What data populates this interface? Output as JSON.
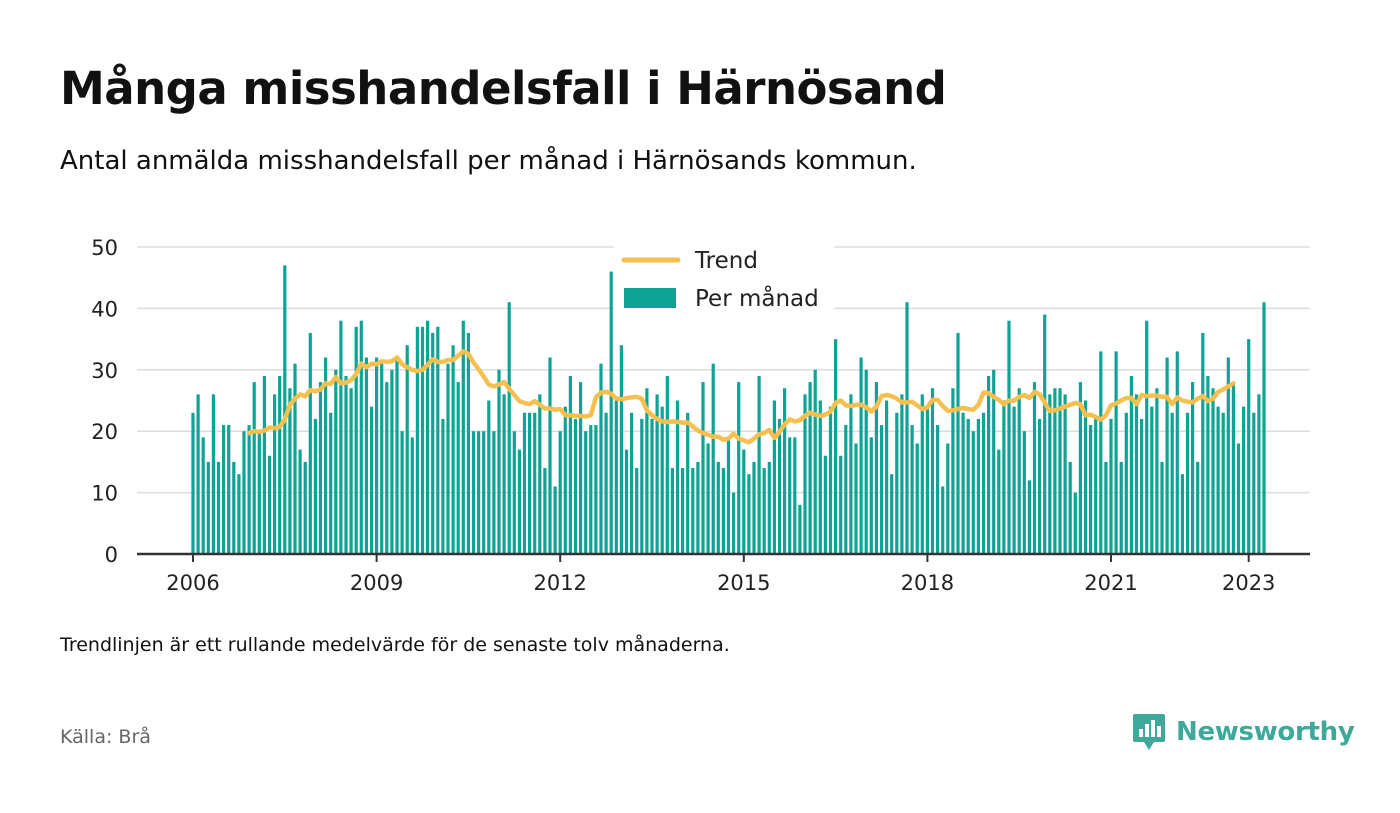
{
  "header": {
    "title": "Många misshandelsfall i Härnösand",
    "subtitle": "Antal anmälda misshandelsfall per månad i Härnösands kommun."
  },
  "footer": {
    "note": "Trendlinjen är ett rullande medelvärde för de senaste tolv månaderna.",
    "source": "Källa: Brå",
    "brand": "Newsworthy"
  },
  "colors": {
    "bars": "#0fa396",
    "trend": "#f5c04f",
    "grid": "#dddddd",
    "axis": "#333333",
    "brand": "#3ea89a"
  },
  "chart_data": {
    "type": "bar",
    "x_start": "2006-01",
    "ylim": [
      0,
      50
    ],
    "yticks": [
      0,
      10,
      20,
      30,
      40,
      50
    ],
    "xticks": [
      "2006",
      "2009",
      "2012",
      "2015",
      "2018",
      "2021",
      "2023"
    ],
    "grid": true,
    "legend_position": "top-center",
    "series": [
      {
        "name": "Per månad",
        "type": "bar",
        "values": [
          23,
          26,
          19,
          15,
          26,
          15,
          21,
          21,
          15,
          13,
          20,
          21,
          28,
          20,
          29,
          16,
          26,
          29,
          47,
          27,
          31,
          17,
          15,
          36,
          22,
          28,
          32,
          23,
          30,
          38,
          29,
          27,
          37,
          38,
          32,
          24,
          32,
          31,
          28,
          30,
          32,
          20,
          34,
          19,
          37,
          37,
          38,
          36,
          37,
          22,
          31,
          34,
          28,
          38,
          36,
          20,
          20,
          20,
          25,
          20,
          30,
          26,
          41,
          20,
          17,
          23,
          23,
          23,
          26,
          14,
          32,
          11,
          20,
          24,
          29,
          22,
          28,
          20,
          21,
          21,
          31,
          23,
          46,
          25,
          34,
          17,
          23,
          14,
          22,
          27,
          22,
          26,
          24,
          29,
          14,
          25,
          14,
          23,
          14,
          15,
          28,
          18,
          31,
          15,
          14,
          19,
          10,
          28,
          17,
          13,
          15,
          29,
          14,
          15,
          25,
          22,
          27,
          19,
          19,
          8,
          26,
          28,
          30,
          25,
          16,
          24,
          35,
          16,
          21,
          26,
          18,
          32,
          30,
          19,
          28,
          21,
          25,
          13,
          23,
          26,
          41,
          21,
          18,
          26,
          24,
          27,
          21,
          11,
          18,
          27,
          36,
          23,
          22,
          20,
          22,
          23,
          29,
          30,
          17,
          25,
          38,
          24,
          27,
          20,
          12,
          28,
          22,
          39,
          26,
          27,
          27,
          26,
          15,
          10,
          28,
          25,
          21,
          22,
          33,
          15,
          22,
          33,
          15,
          23,
          29,
          26,
          22,
          38,
          24,
          27,
          15,
          32,
          23,
          33,
          13,
          23,
          28,
          15,
          36,
          29,
          27,
          24,
          23,
          32,
          28,
          18,
          24,
          35,
          23,
          26,
          41
        ]
      },
      {
        "name": "Trend",
        "type": "line",
        "start": "2006-12",
        "values": [
          19.7,
          20.0,
          19.9,
          20.1,
          20.6,
          20.5,
          20.7,
          21.9,
          24.3,
          25.3,
          26.0,
          25.7,
          26.7,
          26.5,
          26.8,
          27.8,
          27.7,
          28.8,
          27.8,
          27.9,
          28.3,
          29.3,
          31.0,
          30.4,
          31.0,
          30.9,
          31.4,
          31.3,
          31.4,
          32.0,
          30.9,
          30.4,
          30.0,
          29.8,
          30.0,
          30.8,
          31.7,
          31.3,
          31.3,
          31.6,
          31.6,
          32.3,
          33.0,
          32.6,
          31.2,
          30.1,
          28.9,
          27.6,
          27.3,
          27.6,
          28.0,
          26.9,
          25.9,
          24.9,
          24.6,
          24.4,
          24.9,
          24.3,
          23.7,
          23.7,
          23.5,
          23.6,
          22.6,
          22.6,
          22.5,
          22.5,
          22.4,
          22.6,
          25.5,
          26.3,
          26.4,
          26.1,
          25.3,
          25.2,
          25.4,
          25.5,
          25.6,
          25.3,
          23.4,
          22.6,
          22.0,
          21.6,
          21.5,
          21.6,
          21.5,
          21.4,
          21.4,
          20.8,
          20.1,
          19.7,
          19.4,
          19.1,
          19.1,
          18.6,
          18.8,
          19.6,
          18.8,
          18.5,
          18.2,
          18.8,
          19.5,
          19.7,
          20.2,
          18.9,
          19.9,
          21.1,
          21.9,
          21.6,
          21.8,
          22.5,
          23.0,
          22.7,
          22.5,
          22.7,
          23.2,
          24.6,
          25.0,
          24.2,
          24.1,
          24.3,
          24.3,
          23.9,
          23.2,
          24.0,
          25.7,
          25.9,
          25.7,
          25.3,
          24.7,
          24.7,
          24.8,
          24.2,
          23.6,
          23.9,
          25.1,
          25.1,
          24.1,
          23.3,
          23.4,
          23.6,
          23.8,
          23.6,
          23.5,
          24.3,
          26.3,
          26.2,
          25.6,
          25.1,
          24.4,
          25.0,
          25.0,
          25.6,
          25.9,
          25.4,
          26.4,
          26.0,
          24.7,
          23.3,
          23.4,
          23.7,
          24.0,
          24.3,
          24.6,
          24.4,
          22.6,
          22.7,
          22.3,
          21.9,
          22.6,
          24.2,
          24.5,
          25.0,
          25.4,
          25.4,
          24.4,
          25.9,
          25.7,
          25.8,
          25.8,
          25.6,
          25.6,
          24.4,
          25.5,
          25.0,
          24.8,
          24.7,
          25.3,
          25.7,
          24.9,
          25.3,
          26.4,
          26.8,
          27.3,
          27.8
        ]
      }
    ],
    "legend": [
      "Trend",
      "Per månad"
    ]
  }
}
